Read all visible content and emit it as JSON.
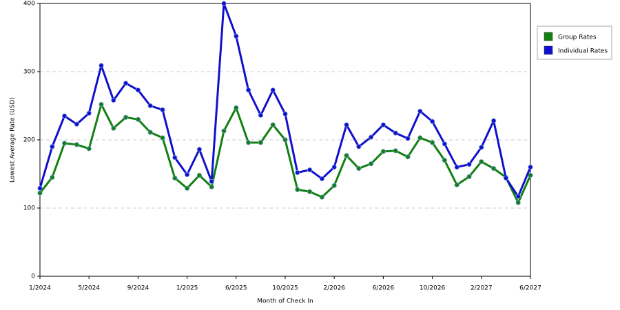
{
  "chart_data": {
    "type": "line",
    "x_label": "Month of Check In",
    "y_label": "Lowest Average Rate (USD)",
    "categories": [
      "1/2024",
      null,
      null,
      null,
      "5/2024",
      null,
      null,
      null,
      "9/2024",
      null,
      null,
      null,
      "1/2025",
      null,
      null,
      null,
      "6/2025",
      null,
      null,
      null,
      "10/2025",
      null,
      null,
      null,
      "2/2026",
      null,
      null,
      null,
      "6/2026",
      null,
      null,
      null,
      "10/2026",
      null,
      null,
      null,
      "2/2027",
      null,
      null,
      null,
      "6/2027"
    ],
    "series": [
      {
        "name": "Group Rates",
        "color": "#118011",
        "values": [
          122,
          145,
          195,
          193,
          187,
          252,
          217,
          233,
          230,
          211,
          203,
          144,
          129,
          148,
          131,
          213,
          247,
          196,
          196,
          222,
          200,
          127,
          124,
          116,
          133,
          177,
          158,
          165,
          183,
          184,
          175,
          203,
          196,
          170,
          134,
          146,
          168,
          158,
          145,
          108,
          148
        ]
      },
      {
        "name": "Individual Rates",
        "color": "#1010cc",
        "values": [
          129,
          190,
          235,
          223,
          239,
          309,
          258,
          283,
          273,
          250,
          244,
          174,
          149,
          186,
          139,
          400,
          352,
          273,
          236,
          273,
          238,
          152,
          156,
          143,
          160,
          222,
          190,
          204,
          222,
          210,
          202,
          242,
          227,
          194,
          160,
          164,
          189,
          228,
          144,
          117,
          160
        ]
      }
    ],
    "ylim": [
      0,
      400
    ],
    "yticks": [
      0,
      100,
      200,
      300,
      400
    ],
    "grid": true,
    "legend": "right"
  }
}
